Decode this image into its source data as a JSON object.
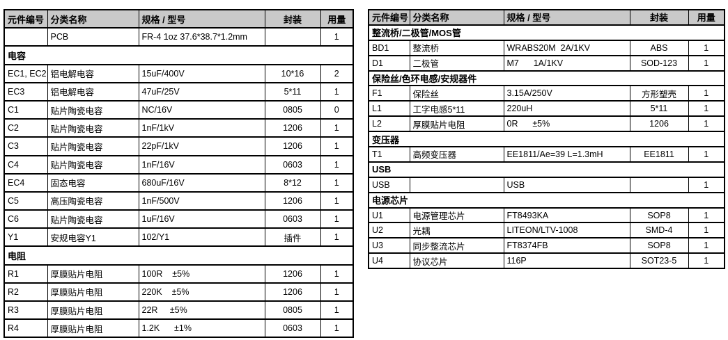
{
  "document": {
    "type": "bill-of-materials",
    "columns": [
      "元件编号",
      "分类名称",
      "规格 / 型号",
      "封装",
      "用量"
    ]
  },
  "left_table": {
    "rows": [
      {
        "type": "item",
        "ref": "",
        "name": "PCB",
        "spec": "FR-4 1oz 37.6*38.7*1.2mm",
        "pkg": "",
        "qty": "1"
      },
      {
        "type": "section",
        "label": "电容"
      },
      {
        "type": "item",
        "ref": "EC1, EC2",
        "name": "铝电解电容",
        "spec": "15uF/400V",
        "pkg": "10*16",
        "qty": "2"
      },
      {
        "type": "item",
        "ref": "EC3",
        "name": "铝电解电容",
        "spec": "47uF/25V",
        "pkg": "5*11",
        "qty": "1"
      },
      {
        "type": "item",
        "ref": "C1",
        "name": "贴片陶瓷电容",
        "spec": "NC/16V",
        "pkg": "0805",
        "qty": "0"
      },
      {
        "type": "item",
        "ref": "C2",
        "name": "贴片陶瓷电容",
        "spec": "1nF/1kV",
        "pkg": "1206",
        "qty": "1"
      },
      {
        "type": "item",
        "ref": "C3",
        "name": "贴片陶瓷电容",
        "spec": "22pF/1kV",
        "pkg": "1206",
        "qty": "1"
      },
      {
        "type": "item",
        "ref": "C4",
        "name": "贴片陶瓷电容",
        "spec": "1nF/16V",
        "pkg": "0603",
        "qty": "1"
      },
      {
        "type": "item",
        "ref": "EC4",
        "name": "固态电容",
        "spec": "680uF/16V",
        "pkg": "8*12",
        "qty": "1"
      },
      {
        "type": "item",
        "ref": "C5",
        "name": "高压陶瓷电容",
        "spec": "1nF/500V",
        "pkg": "1206",
        "qty": "1"
      },
      {
        "type": "item",
        "ref": "C6",
        "name": "贴片陶瓷电容",
        "spec": "1uF/16V",
        "pkg": "0603",
        "qty": "1"
      },
      {
        "type": "item",
        "ref": "Y1",
        "name": "安规电容Y1",
        "spec": "102/Y1",
        "pkg": "插件",
        "qty": "1"
      },
      {
        "type": "section",
        "label": "电阻"
      },
      {
        "type": "item",
        "ref": "R1",
        "name": "厚膜贴片电阻",
        "spec": "100R    ±5%",
        "pkg": "1206",
        "qty": "1"
      },
      {
        "type": "item",
        "ref": "R2",
        "name": "厚膜贴片电阻",
        "spec": "220K    ±5%",
        "pkg": "1206",
        "qty": "1"
      },
      {
        "type": "item",
        "ref": "R3",
        "name": "厚膜贴片电阻",
        "spec": "22R     ±5%",
        "pkg": "0805",
        "qty": "1"
      },
      {
        "type": "item",
        "ref": "R4",
        "name": "厚膜贴片电阻",
        "spec": "1.2K      ±1%",
        "pkg": "0603",
        "qty": "1"
      }
    ]
  },
  "right_table": {
    "rows": [
      {
        "type": "section",
        "label": "整流桥/二极管/MOS管"
      },
      {
        "type": "item",
        "ref": "BD1",
        "name": "整流桥",
        "spec": "WRABS20M  2A/1KV",
        "pkg": "ABS",
        "qty": "1"
      },
      {
        "type": "item",
        "ref": "D1",
        "name": "二极管",
        "spec": "M7      1A/1KV",
        "pkg": "SOD-123",
        "qty": "1"
      },
      {
        "type": "section",
        "label": "保险丝/色环电感/安规器件"
      },
      {
        "type": "item",
        "ref": "F1",
        "name": "保险丝",
        "spec": "3.15A/250V",
        "pkg": "方形塑壳",
        "qty": "1"
      },
      {
        "type": "item",
        "ref": "L1",
        "name": "工字电感5*11",
        "spec": "220uH",
        "pkg": "5*11",
        "qty": "1"
      },
      {
        "type": "item",
        "ref": "L2",
        "name": "厚膜贴片电阻",
        "spec": "0R      ±5%",
        "pkg": "1206",
        "qty": "1"
      },
      {
        "type": "section",
        "label": "变压器"
      },
      {
        "type": "item",
        "ref": "T1",
        "name": "高频变压器",
        "spec": "EE1811/Ae=39 L=1.3mH",
        "pkg": "EE1811",
        "qty": "1"
      },
      {
        "type": "section",
        "label": "USB"
      },
      {
        "type": "item",
        "ref": "USB",
        "name": "",
        "spec": "USB",
        "pkg": "",
        "qty": "1"
      },
      {
        "type": "section",
        "label": "电源芯片"
      },
      {
        "type": "item",
        "ref": "U1",
        "name": "电源管理芯片",
        "spec": "FT8493KA",
        "pkg": "SOP8",
        "qty": "1"
      },
      {
        "type": "item",
        "ref": "U2",
        "name": "光耦",
        "spec": "LITEON/LTV-1008",
        "pkg": "SMD-4",
        "qty": "1"
      },
      {
        "type": "item",
        "ref": "U3",
        "name": "同步整流芯片",
        "spec": "FT8374FB",
        "pkg": "SOP8",
        "qty": "1"
      },
      {
        "type": "item",
        "ref": "U4",
        "name": "协议芯片",
        "spec": "116P",
        "pkg": "SOT23-5",
        "qty": "1"
      }
    ]
  },
  "colors": {
    "header_bg": "#c9c9c9",
    "border": "#000000",
    "background": "#ffffff",
    "text": "#000000"
  }
}
